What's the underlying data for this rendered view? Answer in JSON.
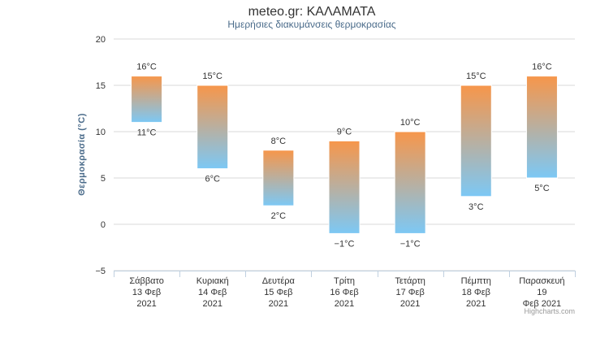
{
  "chart_data": {
    "type": "bar",
    "subtype": "columnrange",
    "title": "meteo.gr: ΚΑΛΑΜΑΤΑ",
    "subtitle": "Ημερήσιες διακυμάνσεις θερμοκρασίας",
    "ylabel": "Θερμοκρασία (°C)",
    "xlabel": "",
    "ylim": [
      -5,
      20
    ],
    "yticks": [
      "20",
      "15",
      "10",
      "5",
      "0",
      "−5"
    ],
    "ytick_values": [
      20,
      15,
      10,
      5,
      0,
      -5
    ],
    "grid": true,
    "categories": [
      [
        "Σάββατο",
        "13 Φεβ",
        "2021"
      ],
      [
        "Κυριακή",
        "14 Φεβ",
        "2021"
      ],
      [
        "Δευτέρα",
        "15 Φεβ",
        "2021"
      ],
      [
        "Τρίτη",
        "16 Φεβ",
        "2021"
      ],
      [
        "Τετάρτη",
        "17 Φεβ",
        "2021"
      ],
      [
        "Πέμπτη",
        "18 Φεβ",
        "2021"
      ],
      [
        "Παρασκευή",
        "19",
        "Φεβ 2021"
      ]
    ],
    "series": [
      {
        "low": [
          11,
          6,
          2,
          -1,
          -1,
          3,
          5
        ],
        "high": [
          16,
          15,
          8,
          9,
          10,
          15,
          16
        ],
        "low_labels": [
          "11°C",
          "6°C",
          "2°C",
          "−1°C",
          "−1°C",
          "3°C",
          "5°C"
        ],
        "high_labels": [
          "16°C",
          "15°C",
          "8°C",
          "9°C",
          "10°C",
          "15°C",
          "16°C"
        ]
      }
    ],
    "colors": {
      "top": "#f7964a",
      "bottom": "#7cc8f5",
      "grid": "#d8d8d8",
      "axis": "#c0d0e0"
    }
  },
  "credits": "Highcharts.com"
}
